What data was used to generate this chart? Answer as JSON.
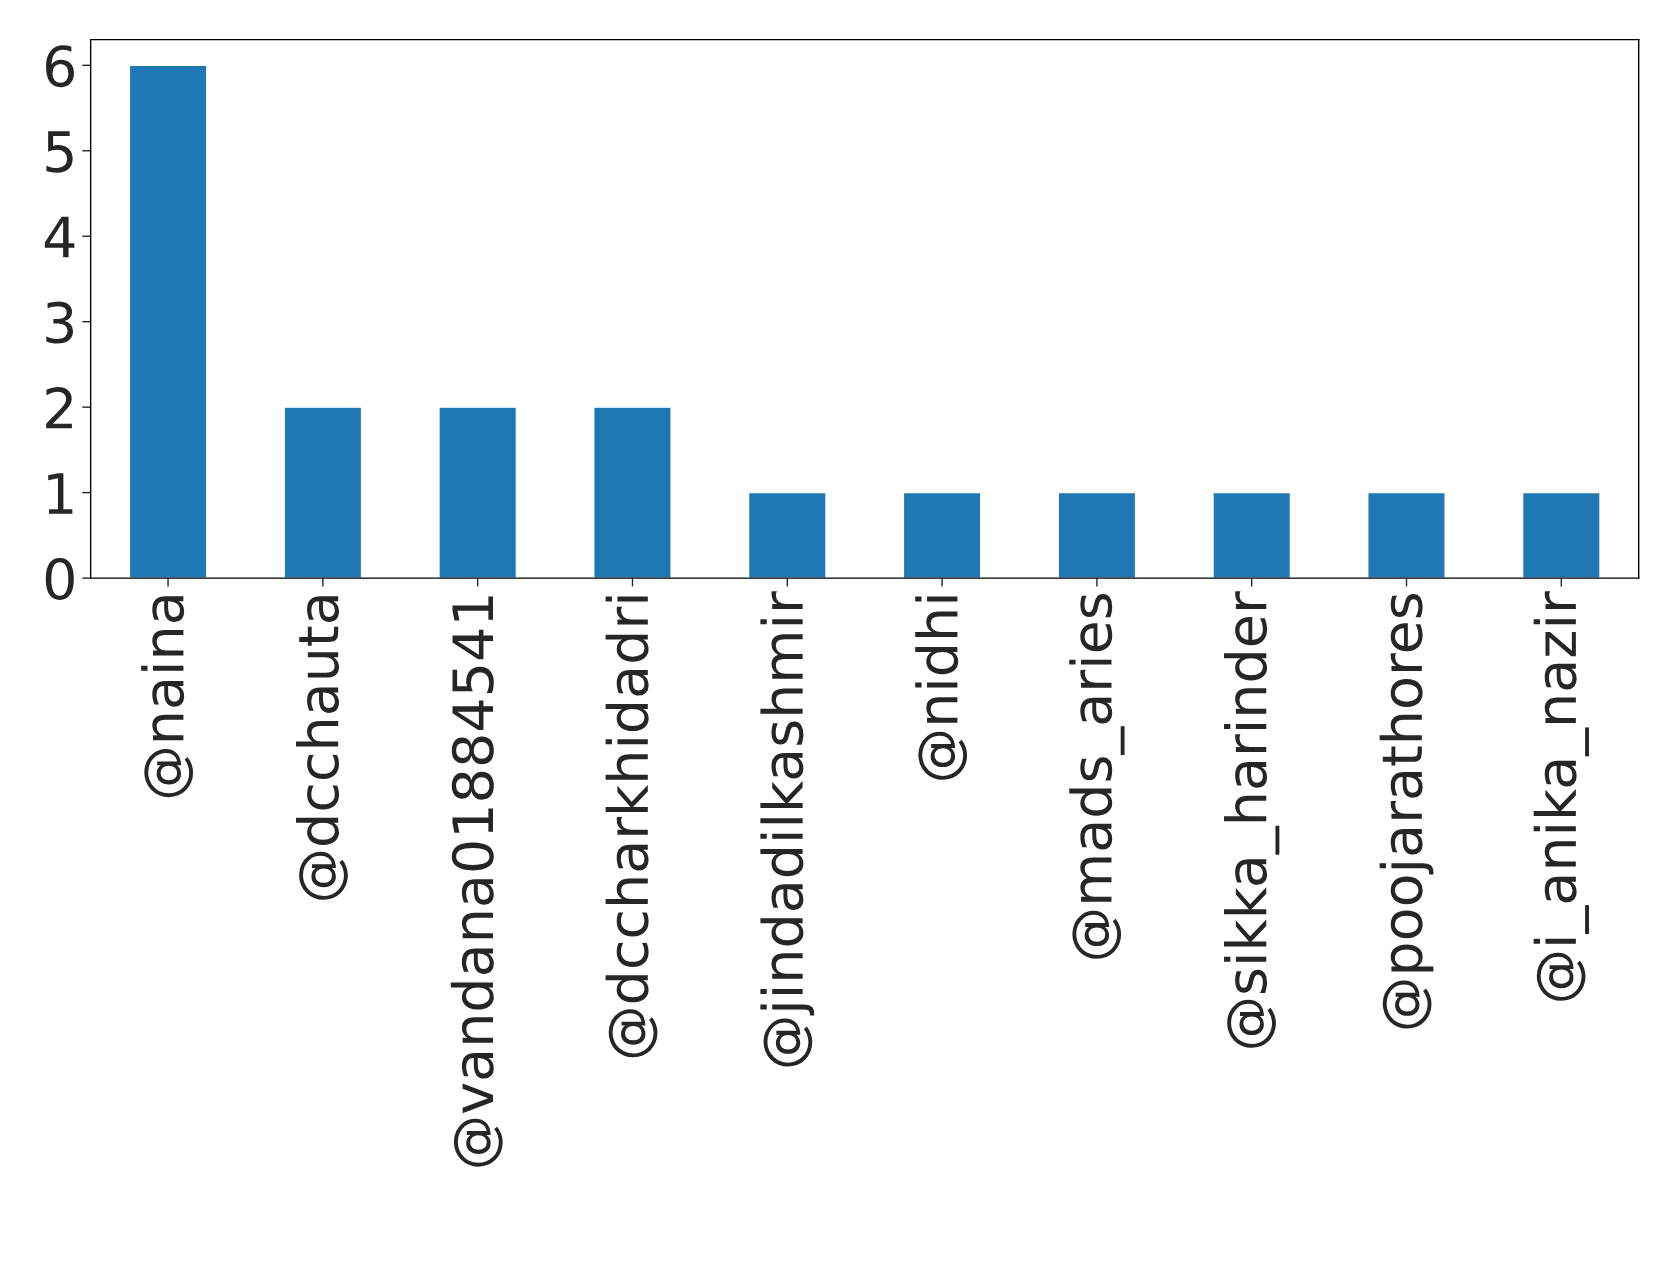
{
  "chart_data": {
    "type": "bar",
    "categories": [
      "@naina",
      "@dcchauta",
      "@vandana01884541",
      "@dccharkhidadri",
      "@jindadilkashmir",
      "@nidhi",
      "@mads_aries",
      "@sikka_harinder",
      "@poojarathores",
      "@i_anika_nazir"
    ],
    "values": [
      6,
      2,
      2,
      2,
      1,
      1,
      1,
      1,
      1,
      1
    ],
    "color": "#1f77b4",
    "ylim": [
      0,
      6.3
    ],
    "yticks": [
      0,
      1,
      2,
      3,
      4,
      5,
      6
    ],
    "grid": false
  }
}
